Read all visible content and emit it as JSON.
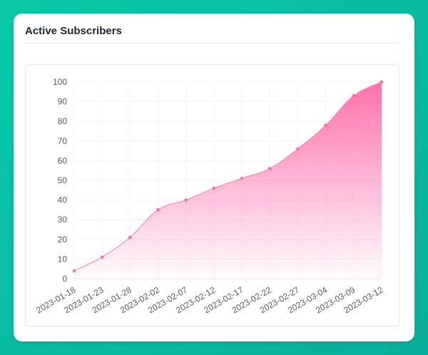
{
  "card": {
    "title": "Active Subscribers"
  },
  "colors": {
    "line": "#f27ab0",
    "fill_top": "#ff6aa9",
    "point": "#f06ca8",
    "background": "#0bbfa3"
  },
  "chart_data": {
    "type": "area",
    "title": "",
    "xlabel": "",
    "ylabel": "",
    "ylim": [
      0,
      100
    ],
    "yticks": [
      0,
      10,
      20,
      30,
      40,
      50,
      60,
      70,
      80,
      90,
      100
    ],
    "xticks": [
      "2023-01-18",
      "2023-01-23",
      "2023-01-28",
      "2023-02-02",
      "2023-02-07",
      "2023-02-12",
      "2023-02-17",
      "2023-02-22",
      "2023-02-27",
      "2023-03-04",
      "2023-03-09",
      "2023-03-12"
    ],
    "grid": true,
    "legend": "none",
    "series": [
      {
        "values": [
          4,
          11,
          21,
          35,
          40,
          46,
          51,
          56,
          66,
          78,
          93,
          100
        ]
      }
    ]
  }
}
